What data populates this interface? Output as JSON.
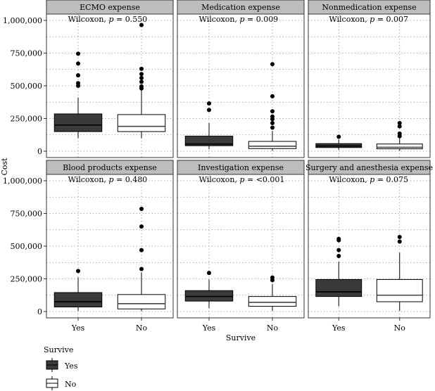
{
  "chart_data": {
    "type": "boxplot",
    "layout": "faceted 2x3 grid",
    "xlabel": "Survive",
    "ylabel": "Cost",
    "categories": [
      "Yes",
      "No"
    ],
    "ylim": [
      0,
      1000000
    ],
    "y_ticks": [
      0,
      250000,
      500000,
      750000,
      1000000
    ],
    "y_tick_labels": [
      "0",
      "250,000",
      "500,000",
      "750,000",
      "1,000,000"
    ],
    "grid": "dotted",
    "legend": {
      "title": "Survive",
      "position": "bottom-left",
      "entries": [
        {
          "label": "Yes",
          "fill": "#3a3a3a"
        },
        {
          "label": "No",
          "fill": "#ffffff"
        }
      ]
    },
    "panels": [
      {
        "title": "ECMO expense",
        "annotation": {
          "prefix": "Wilcoxon, ",
          "p": "p",
          "suffix": " = 0.550"
        },
        "boxes": [
          {
            "group": "Yes",
            "whisker_low": 100000,
            "q1": 150000,
            "median": 200000,
            "q3": 285000,
            "whisker_high": 410000,
            "outliers": [
              500000,
              520000,
              580000,
              670000,
              745000
            ]
          },
          {
            "group": "No",
            "whisker_low": 100000,
            "q1": 150000,
            "median": 190000,
            "q3": 280000,
            "whisker_high": 470000,
            "outliers": [
              480000,
              495000,
              530000,
              560000,
              590000,
              630000,
              965000
            ]
          }
        ]
      },
      {
        "title": "Medication expense",
        "annotation": {
          "prefix": "Wilcoxon, ",
          "p": "p",
          "suffix": " = 0.009"
        },
        "boxes": [
          {
            "group": "Yes",
            "whisker_low": 15000,
            "q1": 42000,
            "median": 55000,
            "q3": 115000,
            "whisker_high": 215000,
            "outliers": [
              315000,
              365000
            ]
          },
          {
            "group": "No",
            "whisker_low": 3000,
            "q1": 20000,
            "median": 38000,
            "q3": 75000,
            "whisker_high": 155000,
            "outliers": [
              180000,
              215000,
              245000,
              265000,
              305000,
              420000,
              665000
            ]
          }
        ]
      },
      {
        "title": "Nonmedication expense",
        "annotation": {
          "prefix": "Wilcoxon, ",
          "p": "p",
          "suffix": " = 0.007"
        },
        "boxes": [
          {
            "group": "Yes",
            "whisker_low": 10000,
            "q1": 28000,
            "median": 40000,
            "q3": 58000,
            "whisker_high": 90000,
            "outliers": [
              110000
            ]
          },
          {
            "group": "No",
            "whisker_low": 3000,
            "q1": 18000,
            "median": 30000,
            "q3": 55000,
            "whisker_high": 100000,
            "outliers": [
              115000,
              135000,
              190000,
              215000
            ]
          }
        ]
      },
      {
        "title": "Blood products expense",
        "annotation": {
          "prefix": "Wilcoxon, ",
          "p": "p",
          "suffix": " = 0.480"
        },
        "boxes": [
          {
            "group": "Yes",
            "whisker_low": 5000,
            "q1": 35000,
            "median": 75000,
            "q3": 145000,
            "whisker_high": 260000,
            "outliers": [
              310000
            ]
          },
          {
            "group": "No",
            "whisker_low": 3000,
            "q1": 20000,
            "median": 60000,
            "q3": 130000,
            "whisker_high": 300000,
            "outliers": [
              325000,
              470000,
              650000,
              785000
            ]
          }
        ]
      },
      {
        "title": "Investigation expense",
        "annotation": {
          "prefix": "Wilcoxon, ",
          "p": "p",
          "suffix": " = <0.001"
        },
        "boxes": [
          {
            "group": "Yes",
            "whisker_low": 25000,
            "q1": 80000,
            "median": 115000,
            "q3": 160000,
            "whisker_high": 245000,
            "outliers": [
              295000
            ]
          },
          {
            "group": "No",
            "whisker_low": 5000,
            "q1": 40000,
            "median": 70000,
            "q3": 115000,
            "whisker_high": 210000,
            "outliers": [
              240000,
              260000
            ]
          }
        ]
      },
      {
        "title": "Surgery and anesthesia expense",
        "annotation": {
          "prefix": "Wilcoxon, ",
          "p": "p",
          "suffix": " = 0.075"
        },
        "boxes": [
          {
            "group": "Yes",
            "whisker_low": 40000,
            "q1": 115000,
            "median": 150000,
            "q3": 245000,
            "whisker_high": 380000,
            "outliers": [
              425000,
              470000,
              545000,
              555000
            ]
          },
          {
            "group": "No",
            "whisker_low": 5000,
            "q1": 75000,
            "median": 125000,
            "q3": 245000,
            "whisker_high": 450000,
            "outliers": [
              535000,
              570000
            ]
          }
        ]
      }
    ]
  }
}
